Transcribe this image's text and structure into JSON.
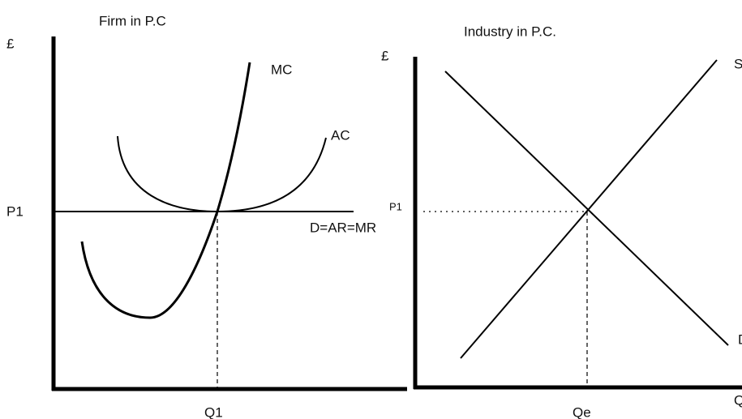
{
  "firm": {
    "title": "Firm in P.C",
    "y_axis": "£",
    "mc": "MC",
    "ac": "AC",
    "price": "P1",
    "demand": "D=AR=MR",
    "quantity": "Q1"
  },
  "industry": {
    "title": "Industry in P.C.",
    "y_axis": "£",
    "supply": "S",
    "demand": "D",
    "price": "P1",
    "quantity": "Qe",
    "x_axis": "Q"
  }
}
